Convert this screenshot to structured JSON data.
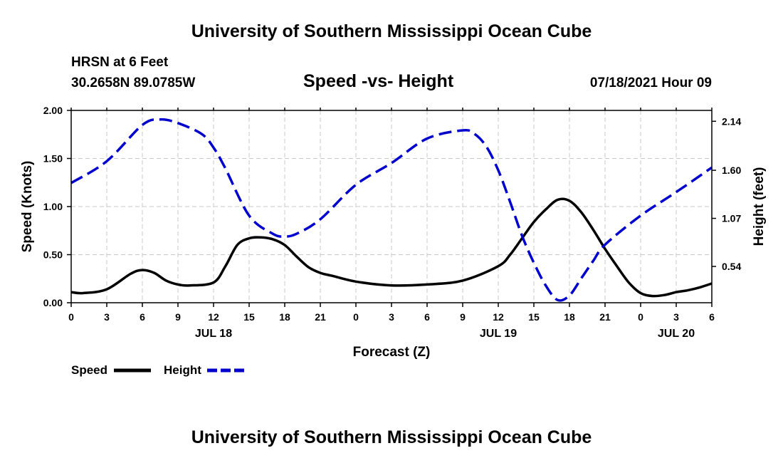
{
  "header": {
    "title": "University of Southern Mississippi Ocean Cube",
    "station": "HRSN at 6 Feet",
    "coords": "30.2658N  89.0785W",
    "datetime": "07/18/2021 Hour 09"
  },
  "footer": {
    "title": "University of Southern Mississippi Ocean Cube"
  },
  "chart_data": {
    "type": "line",
    "title": "Speed -vs- Height",
    "xlabel": "Forecast (Z)",
    "ylabel": "Speed (Knots)",
    "y2label": "Height (feet)",
    "xlim": [
      0,
      54
    ],
    "ylim": [
      0,
      2.0
    ],
    "y2lim": [
      0.14,
      2.26
    ],
    "x_ticks": [
      0,
      3,
      6,
      9,
      12,
      15,
      18,
      21,
      24,
      27,
      30,
      33,
      36,
      39,
      42,
      45,
      48,
      51,
      54
    ],
    "x_tick_labels": [
      "0",
      "3",
      "6",
      "9",
      "12",
      "15",
      "18",
      "21",
      "0",
      "3",
      "6",
      "9",
      "12",
      "15",
      "18",
      "21",
      "0",
      "3",
      "6"
    ],
    "date_labels": [
      {
        "x": 12,
        "label": "JUL 18"
      },
      {
        "x": 36,
        "label": "JUL 19"
      },
      {
        "x": 51,
        "label": "JUL 20"
      }
    ],
    "y_ticks": [
      0,
      0.5,
      1.0,
      1.5,
      2.0
    ],
    "y_tick_labels": [
      "0.00",
      "0.50",
      "1.00",
      "1.50",
      "2.00"
    ],
    "y2_ticks": [
      0.54,
      1.07,
      1.6,
      2.14
    ],
    "y2_tick_labels": [
      "0.54",
      "1.07",
      "1.60",
      "2.14"
    ],
    "grid": true,
    "series": [
      {
        "name": "Speed",
        "axis": "left",
        "color": "#000000",
        "dash": "solid",
        "x": [
          0,
          1,
          3,
          5,
          6,
          7,
          8,
          9,
          10,
          12,
          13,
          14,
          15,
          16,
          17,
          18,
          19,
          20,
          21,
          22,
          24,
          27,
          30,
          33,
          36,
          37,
          38,
          39,
          40,
          41,
          42,
          43,
          44,
          45,
          46,
          47,
          48,
          49,
          50,
          51,
          52,
          53,
          54
        ],
        "values": [
          0.11,
          0.1,
          0.14,
          0.3,
          0.34,
          0.31,
          0.23,
          0.19,
          0.18,
          0.21,
          0.38,
          0.6,
          0.67,
          0.68,
          0.66,
          0.6,
          0.48,
          0.37,
          0.31,
          0.28,
          0.22,
          0.18,
          0.19,
          0.23,
          0.38,
          0.5,
          0.67,
          0.84,
          0.97,
          1.07,
          1.06,
          0.94,
          0.76,
          0.56,
          0.38,
          0.21,
          0.1,
          0.07,
          0.08,
          0.11,
          0.13,
          0.16,
          0.2
        ]
      },
      {
        "name": "Height",
        "axis": "right",
        "color": "#0000cc",
        "dash": "dashed",
        "x": [
          0,
          3,
          6,
          7.5,
          9,
          11,
          12,
          13,
          15,
          17,
          18,
          19,
          21,
          24,
          27,
          30,
          33,
          34,
          35,
          36,
          37,
          38,
          39,
          40,
          41,
          42,
          43,
          44,
          45,
          48,
          51,
          54
        ],
        "values": [
          1.46,
          1.7,
          2.1,
          2.16,
          2.12,
          2.0,
          1.85,
          1.62,
          1.1,
          0.9,
          0.87,
          0.9,
          1.06,
          1.44,
          1.68,
          1.95,
          2.04,
          2.0,
          1.86,
          1.6,
          1.25,
          0.88,
          0.58,
          0.33,
          0.17,
          0.22,
          0.41,
          0.6,
          0.78,
          1.1,
          1.36,
          1.63
        ]
      }
    ],
    "legend": [
      {
        "label": "Speed",
        "color": "#000000",
        "dash": "solid"
      },
      {
        "label": "Height",
        "color": "#0000cc",
        "dash": "dashed"
      }
    ]
  }
}
